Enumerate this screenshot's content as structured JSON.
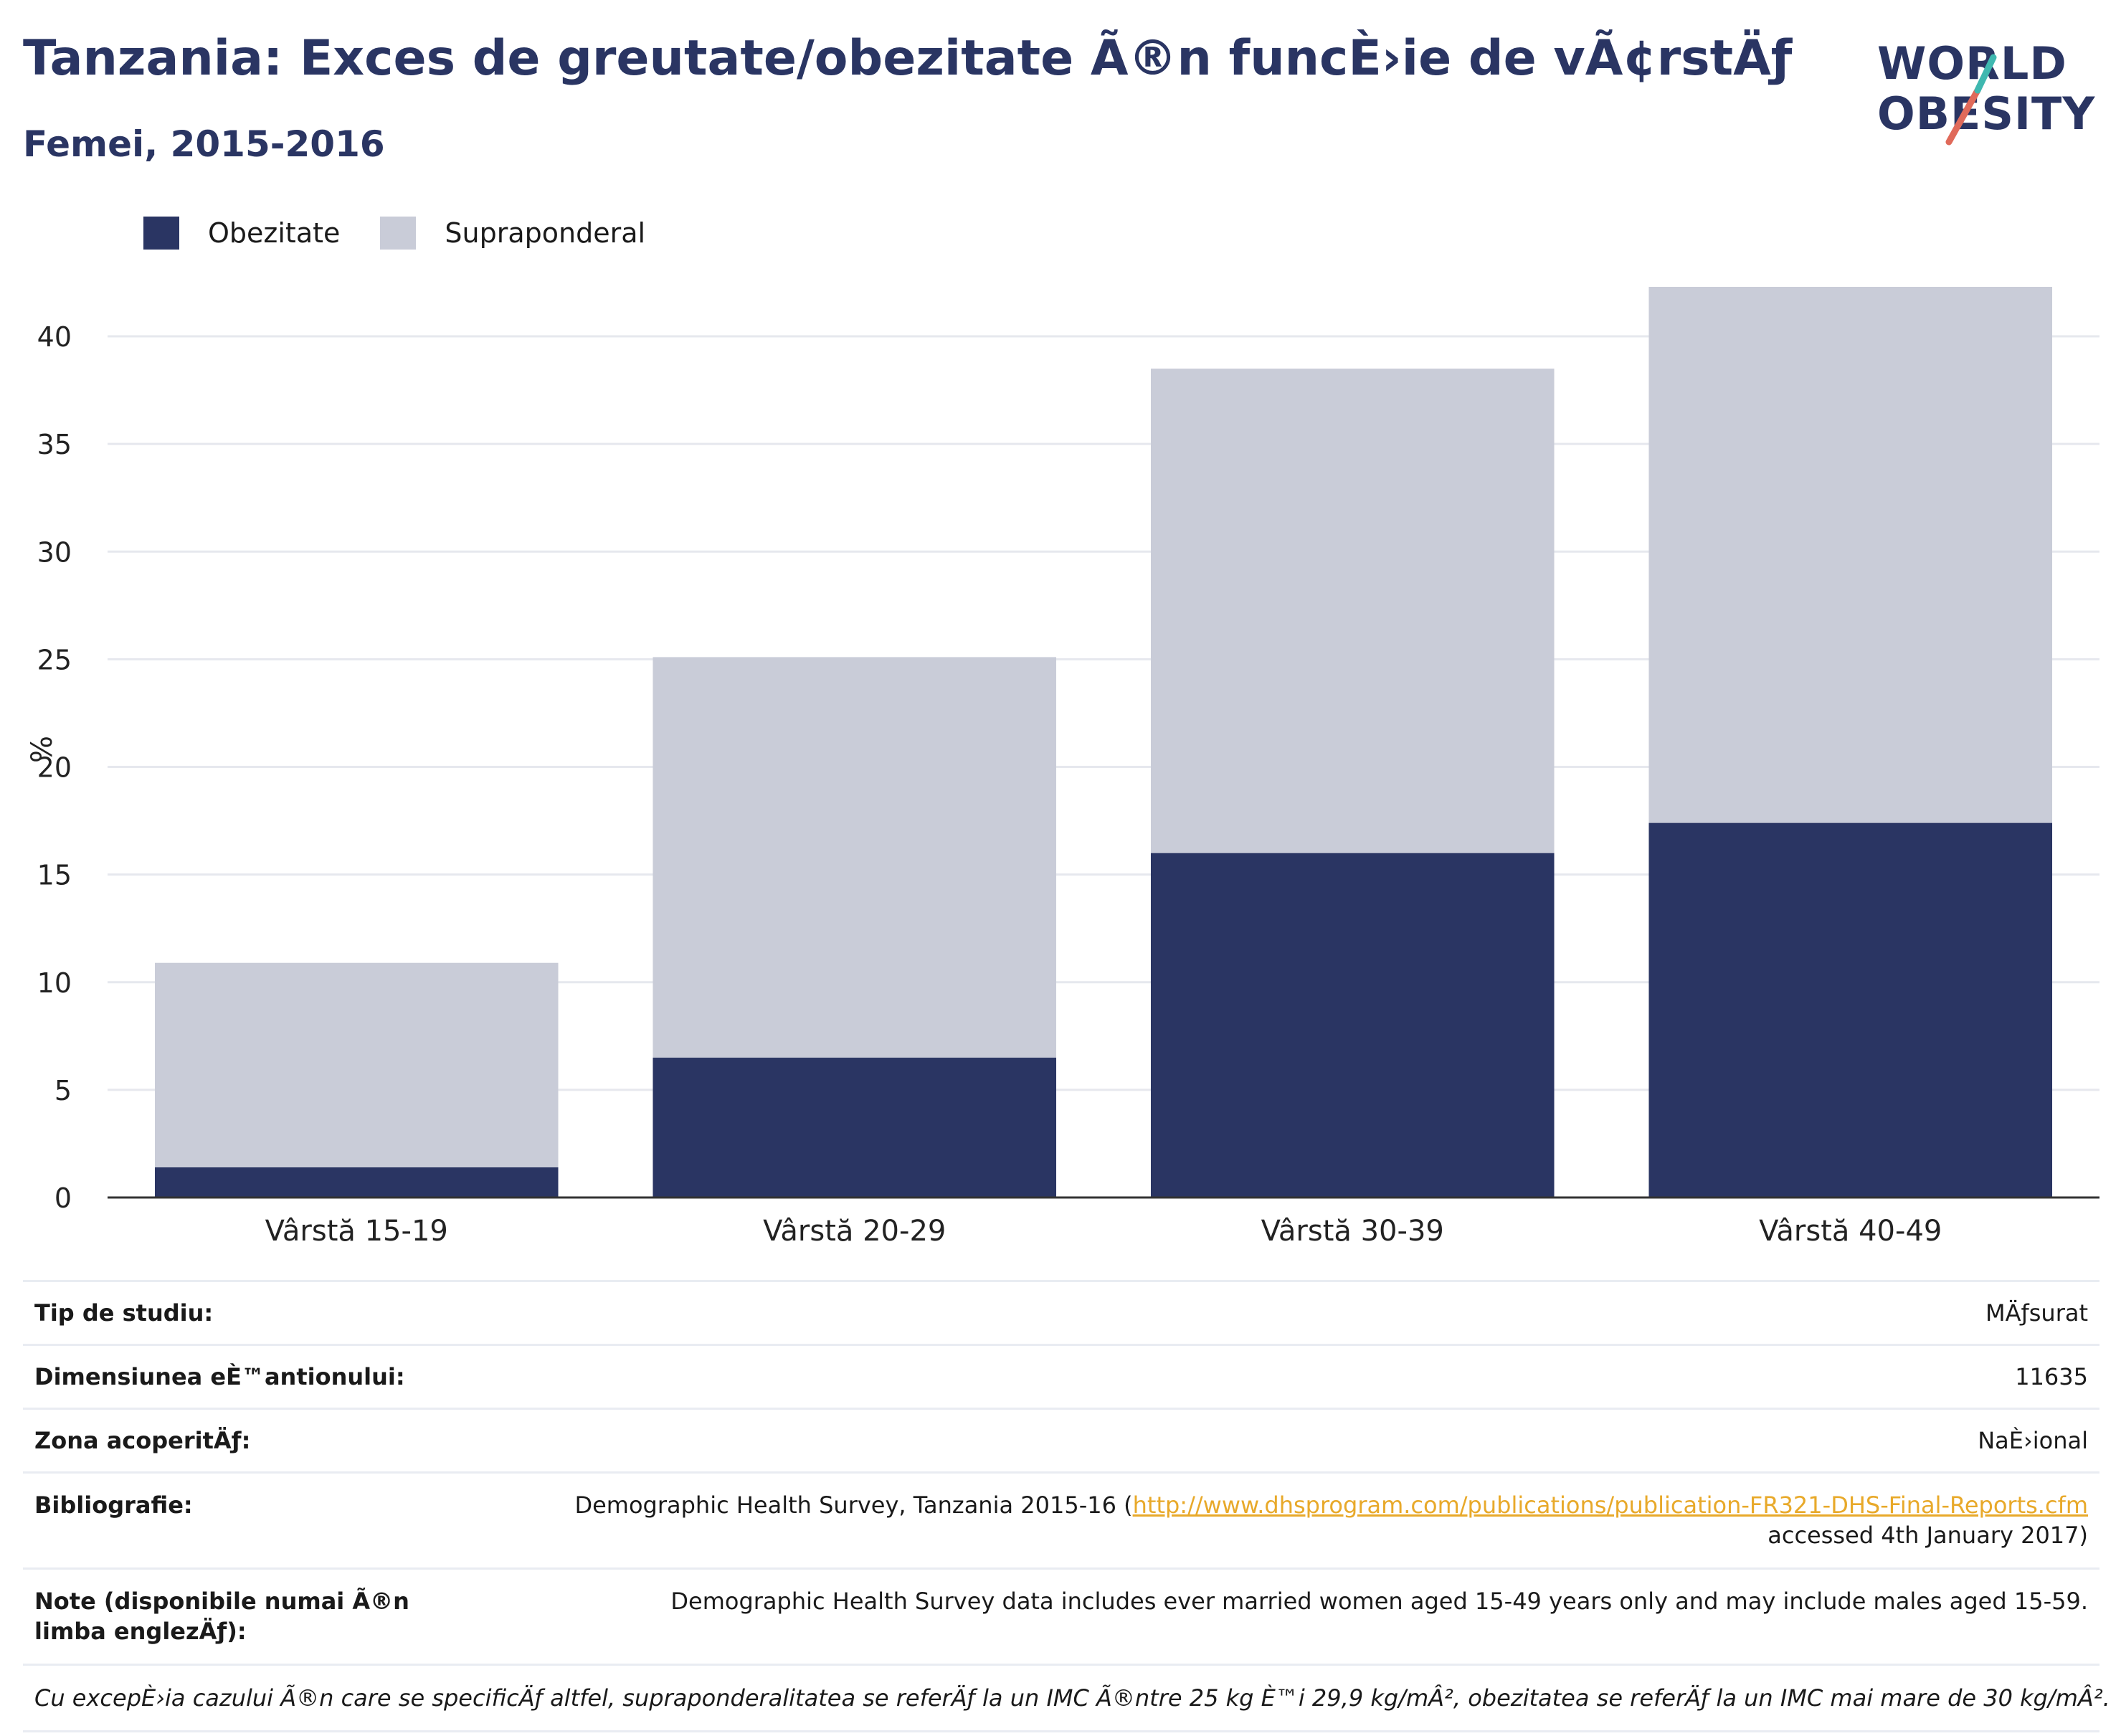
{
  "title": "Tanzania: Exces de greutate/obezitate Ã®n funcÈ›ie de vÃ¢rstÄƒ",
  "subtitle": "Femei, 2015-2016",
  "logo": {
    "line1": "WORLD",
    "line2": "OBESITY"
  },
  "colors": {
    "obesity": "#2a3563",
    "overweight": "#c9ccd8",
    "accent_red": "#e06a5a",
    "accent_teal": "#3fb8b0",
    "link": "#e8a92a"
  },
  "legend": [
    {
      "label": "Obezitate",
      "color": "#2a3563"
    },
    {
      "label": "Supraponderal",
      "color": "#c9ccd8"
    }
  ],
  "chart_data": {
    "type": "bar",
    "stacked": true,
    "categories": [
      "Vârstă 15-19",
      "Vârstă 20-29",
      "Vârstă 30-39",
      "Vârstă 40-49"
    ],
    "series": [
      {
        "name": "Obezitate",
        "values": [
          1.4,
          6.5,
          16.0,
          17.4
        ]
      },
      {
        "name": "Supraponderal",
        "values": [
          9.5,
          18.6,
          22.5,
          24.9
        ]
      }
    ],
    "ylabel": "%",
    "ylim": [
      0,
      42.3
    ],
    "yticks": [
      0,
      5,
      10,
      15,
      20,
      25,
      30,
      35,
      40
    ],
    "grid": true,
    "legend_position": "top-left"
  },
  "info": {
    "study_type_label": "Tip de studiu:",
    "study_type_value": "MÄƒsurat",
    "sample_label": "Dimensiunea eÈ™antionului:",
    "sample_value": "11635",
    "coverage_label": "Zona acoperitÄƒ:",
    "coverage_value": "NaÈ›ional",
    "bib_label": "Bibliografie:",
    "bib_text": "Demographic Health Survey, Tanzania 2015-16 (",
    "bib_link": "http://www.dhsprogram.com/publications/publication-FR321-DHS-Final-Reports.cfm",
    "bib_tail": "accessed 4th January 2017)",
    "notes_label": "Note (disponibile numai Ã®n limba englezÄƒ):",
    "notes_value": "Demographic Health Survey data includes ever married women aged 15-49 years only and may include males aged 15-59.",
    "footnote": "Cu excepÈ›ia cazului Ã®n care se specificÄƒ altfel, supraponderalitatea se referÄƒ la un IMC Ã®ntre 25 kg È™i 29,9 kg/mÂ², obezitatea se referÄƒ la un IMC mai mare de 30 kg/mÂ²."
  }
}
